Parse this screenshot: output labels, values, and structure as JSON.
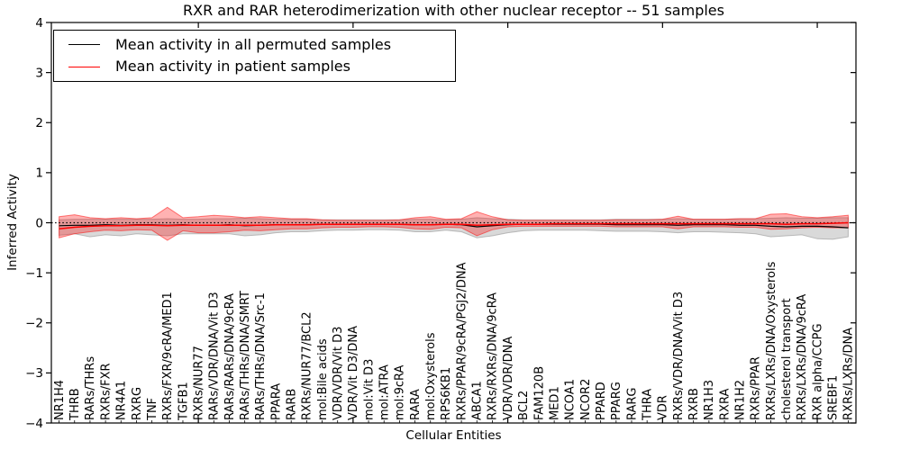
{
  "title": "RXR and RAR heterodimerization with other nuclear receptor -- 51 samples",
  "axes": {
    "ylabel": "Inferred Activity",
    "xlabel": "Cellular Entities"
  },
  "legend": {
    "items": [
      {
        "label": "Mean activity in all permuted samples",
        "color": "#000000"
      },
      {
        "label": "Mean activity in patient samples",
        "color": "#ff0000"
      }
    ],
    "position": "upper left"
  },
  "chart_data": {
    "type": "line",
    "title": "RXR and RAR heterodimerization with other nuclear receptor -- 51 samples",
    "xlabel": "Cellular Entities",
    "ylabel": "Inferred Activity",
    "ylim": [
      -4,
      4
    ],
    "yticks": [
      4,
      3,
      2,
      1,
      0,
      -1,
      -2,
      -3,
      -4
    ],
    "ytick_labels": [
      "4",
      "3",
      "2",
      "1",
      "0",
      "−1",
      "−2",
      "−3",
      "−4"
    ],
    "major_tick_positions": [
      9,
      19,
      29,
      39,
      49
    ],
    "grid": false,
    "legend_position": "upper left",
    "categories": [
      "NR1H4",
      "THRB",
      "RARs/THRs",
      "RXRs/FXR",
      "NR4A1",
      "RXRG",
      "TNF",
      "RXRs/FXR/9cRA/MED1",
      "TGFB1",
      "RXRs/NUR77",
      "RARs/VDR/DNA/Vit D3",
      "RARs/RARs/DNA/9cRA",
      "RARs/THRs/DNA/SMRT",
      "RARs/THRs/DNA/Src-1",
      "PPARA",
      "RARB",
      "RXRs/NUR77/BCL2",
      "mol:Bile acids",
      "VDR/VDR/Vit D3",
      "VDR/Vit D3/DNA",
      "mol:Vit D3",
      "mol:ATRA",
      "mol:9cRA",
      "RARA",
      "mol:Oxysterols",
      "RPS6KB1",
      "RXRs/PPAR/9cRA/PGJ2/DNA",
      "ABCA1",
      "RXRs/RXRs/DNA/9cRA",
      "VDR/VDR/DNA",
      "BCL2",
      "FAM120B",
      "MED1",
      "NCOA1",
      "NCOR2",
      "PPARD",
      "PPARG",
      "RARG",
      "THRA",
      "VDR",
      "RXRs/VDR/DNA/Vit D3",
      "RXRB",
      "NR1H3",
      "RXRA",
      "NR1H2",
      "RXRs/PPAR",
      "RXRs/LXRs/DNA/Oxysterols",
      "cholesterol transport",
      "RXRs/LXRs/DNA/9cRA",
      "RXR alpha/CCPG",
      "SREBF1",
      "RXRs/LXRs/DNA"
    ],
    "reference_line": {
      "y": 0,
      "style": "dotted",
      "color": "#000000"
    },
    "series": [
      {
        "name": "Permuted samples band",
        "type": "band",
        "color": "#888888",
        "fill_opacity": 0.32,
        "upper": [
          0.06,
          0.07,
          0.07,
          0.07,
          0.07,
          0.07,
          0.07,
          0.08,
          0.07,
          0.07,
          0.08,
          0.08,
          0.09,
          0.08,
          0.07,
          0.07,
          0.07,
          0.06,
          0.06,
          0.06,
          0.06,
          0.06,
          0.06,
          0.07,
          0.07,
          0.06,
          0.07,
          0.1,
          0.08,
          0.07,
          0.06,
          0.06,
          0.06,
          0.06,
          0.06,
          0.06,
          0.07,
          0.07,
          0.07,
          0.07,
          0.08,
          0.07,
          0.07,
          0.07,
          0.08,
          0.08,
          0.09,
          0.1,
          0.09,
          0.09,
          0.1,
          0.1
        ],
        "lower": [
          -0.25,
          -0.22,
          -0.28,
          -0.24,
          -0.26,
          -0.22,
          -0.24,
          -0.26,
          -0.22,
          -0.22,
          -0.22,
          -0.22,
          -0.26,
          -0.24,
          -0.2,
          -0.18,
          -0.18,
          -0.16,
          -0.15,
          -0.15,
          -0.14,
          -0.14,
          -0.15,
          -0.18,
          -0.18,
          -0.15,
          -0.18,
          -0.3,
          -0.26,
          -0.2,
          -0.16,
          -0.15,
          -0.15,
          -0.15,
          -0.15,
          -0.16,
          -0.17,
          -0.17,
          -0.17,
          -0.18,
          -0.2,
          -0.18,
          -0.18,
          -0.19,
          -0.2,
          -0.22,
          -0.28,
          -0.26,
          -0.24,
          -0.32,
          -0.33,
          -0.28
        ]
      },
      {
        "name": "Patient samples band",
        "type": "band",
        "color": "#ff0000",
        "fill_opacity": 0.3,
        "upper": [
          0.12,
          0.16,
          0.1,
          0.08,
          0.1,
          0.08,
          0.1,
          0.31,
          0.1,
          0.12,
          0.15,
          0.13,
          0.1,
          0.12,
          0.1,
          0.08,
          0.08,
          0.06,
          0.05,
          0.05,
          0.05,
          0.05,
          0.06,
          0.1,
          0.12,
          0.07,
          0.08,
          0.22,
          0.12,
          0.06,
          0.05,
          0.05,
          0.05,
          0.05,
          0.05,
          0.05,
          0.06,
          0.06,
          0.06,
          0.07,
          0.13,
          0.07,
          0.07,
          0.07,
          0.08,
          0.08,
          0.17,
          0.18,
          0.12,
          0.1,
          0.12,
          0.15
        ],
        "lower": [
          -0.3,
          -0.22,
          -0.18,
          -0.15,
          -0.16,
          -0.14,
          -0.15,
          -0.35,
          -0.16,
          -0.2,
          -0.2,
          -0.18,
          -0.15,
          -0.16,
          -0.14,
          -0.12,
          -0.12,
          -0.1,
          -0.09,
          -0.09,
          -0.08,
          -0.08,
          -0.09,
          -0.12,
          -0.13,
          -0.09,
          -0.1,
          -0.26,
          -0.14,
          -0.08,
          -0.07,
          -0.07,
          -0.07,
          -0.07,
          -0.07,
          -0.07,
          -0.08,
          -0.08,
          -0.08,
          -0.08,
          -0.12,
          -0.08,
          -0.08,
          -0.08,
          -0.09,
          -0.09,
          -0.13,
          -0.12,
          -0.1,
          -0.09,
          -0.1,
          -0.1
        ]
      },
      {
        "name": "Mean activity in all permuted samples",
        "type": "line",
        "color": "#000000",
        "line_width": 1.2,
        "values": [
          -0.06,
          -0.05,
          -0.05,
          -0.04,
          -0.05,
          -0.04,
          -0.04,
          -0.05,
          -0.04,
          -0.05,
          -0.05,
          -0.04,
          -0.06,
          -0.05,
          -0.04,
          -0.04,
          -0.04,
          -0.03,
          -0.03,
          -0.03,
          -0.03,
          -0.03,
          -0.03,
          -0.04,
          -0.04,
          -0.03,
          -0.04,
          -0.08,
          -0.06,
          -0.04,
          -0.03,
          -0.03,
          -0.03,
          -0.03,
          -0.03,
          -0.03,
          -0.04,
          -0.04,
          -0.04,
          -0.04,
          -0.05,
          -0.04,
          -0.04,
          -0.04,
          -0.05,
          -0.05,
          -0.07,
          -0.08,
          -0.07,
          -0.07,
          -0.08,
          -0.1
        ]
      },
      {
        "name": "Mean activity in patient samples",
        "type": "line",
        "color": "#ff0000",
        "line_width": 1.5,
        "values": [
          -0.12,
          -0.09,
          -0.07,
          -0.06,
          -0.06,
          -0.05,
          -0.05,
          -0.06,
          -0.05,
          -0.05,
          -0.05,
          -0.05,
          -0.05,
          -0.05,
          -0.04,
          -0.04,
          -0.04,
          -0.03,
          -0.03,
          -0.03,
          -0.03,
          -0.03,
          -0.03,
          -0.04,
          -0.04,
          -0.03,
          -0.03,
          -0.05,
          -0.04,
          -0.03,
          -0.03,
          -0.03,
          -0.02,
          -0.02,
          -0.02,
          -0.02,
          -0.02,
          -0.02,
          -0.02,
          -0.02,
          -0.02,
          -0.02,
          -0.02,
          -0.02,
          -0.02,
          -0.02,
          -0.02,
          -0.03,
          -0.02,
          -0.02,
          -0.01,
          0
        ]
      }
    ]
  }
}
